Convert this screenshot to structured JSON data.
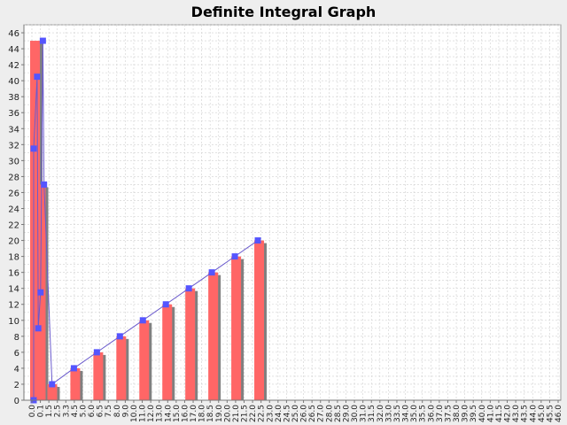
{
  "chart_data": {
    "type": "bar",
    "title": "Definite Integral Graph",
    "xlabel": "",
    "ylabel": "",
    "ylim": [
      0,
      47
    ],
    "grid": true,
    "legend": "none",
    "colors": {
      "background": "#eeeeee",
      "plot_background": "#ffffff",
      "bar": "#ff6666",
      "bar_shadow": "#808080",
      "line": "#6a5acd",
      "marker": "#5555ff",
      "grid": "#d0d0d0"
    },
    "y_ticks": [
      0,
      2,
      4,
      6,
      8,
      10,
      12,
      14,
      16,
      18,
      20,
      22,
      24,
      26,
      28,
      30,
      32,
      34,
      36,
      38,
      40,
      42,
      44,
      46
    ],
    "categories": [
      "0.0",
      "0.1",
      "1.5",
      "2.5",
      "3.3",
      "4.5",
      "5.0",
      "6.0",
      "6.5",
      "7.5",
      "8.0",
      "9.0",
      "10.0",
      "11.0",
      "12.0",
      "13.0",
      "14.0",
      "15.0",
      "16.0",
      "17.0",
      "18.0",
      "18.5",
      "19.0",
      "20.0",
      "21.0",
      "21.5",
      "22.0",
      "22.5",
      "23.0",
      "24.0",
      "24.5",
      "25.0",
      "26.0",
      "26.5",
      "27.0",
      "28.0",
      "28.5",
      "29.0",
      "30.0",
      "31.0",
      "31.5",
      "32.0",
      "33.0",
      "33.5",
      "34.0",
      "35.0",
      "35.5",
      "36.0",
      "37.0",
      "37.5",
      "38.0",
      "39.0",
      "39.5",
      "40.0",
      "41.0",
      "41.5",
      "42.0",
      "43.0",
      "43.5",
      "44.0",
      "45.0",
      "45.5",
      "46.0"
    ],
    "bars": [
      {
        "x": 0.0,
        "value": 45
      },
      {
        "x": 0.5,
        "value": 27
      },
      {
        "x": 1.5,
        "value": 2
      },
      {
        "x": 3.5,
        "value": 4
      },
      {
        "x": 5.5,
        "value": 6
      },
      {
        "x": 7.5,
        "value": 8
      },
      {
        "x": 9.5,
        "value": 10
      },
      {
        "x": 11.5,
        "value": 12
      },
      {
        "x": 13.5,
        "value": 14
      },
      {
        "x": 15.5,
        "value": 16
      },
      {
        "x": 17.5,
        "value": 18
      },
      {
        "x": 19.5,
        "value": 20
      }
    ],
    "line_points": [
      [
        0.0,
        0
      ],
      [
        0.0,
        31.5
      ],
      [
        0.3,
        40.5
      ],
      [
        0.4,
        9
      ],
      [
        0.6,
        13.5
      ],
      [
        0.8,
        45
      ],
      [
        0.9,
        27
      ],
      [
        1.6,
        2
      ],
      [
        3.5,
        4
      ],
      [
        5.5,
        6
      ],
      [
        7.5,
        8
      ],
      [
        9.5,
        10
      ],
      [
        11.5,
        12
      ],
      [
        13.5,
        14
      ],
      [
        15.5,
        16
      ],
      [
        17.5,
        18
      ],
      [
        19.5,
        20
      ]
    ]
  }
}
